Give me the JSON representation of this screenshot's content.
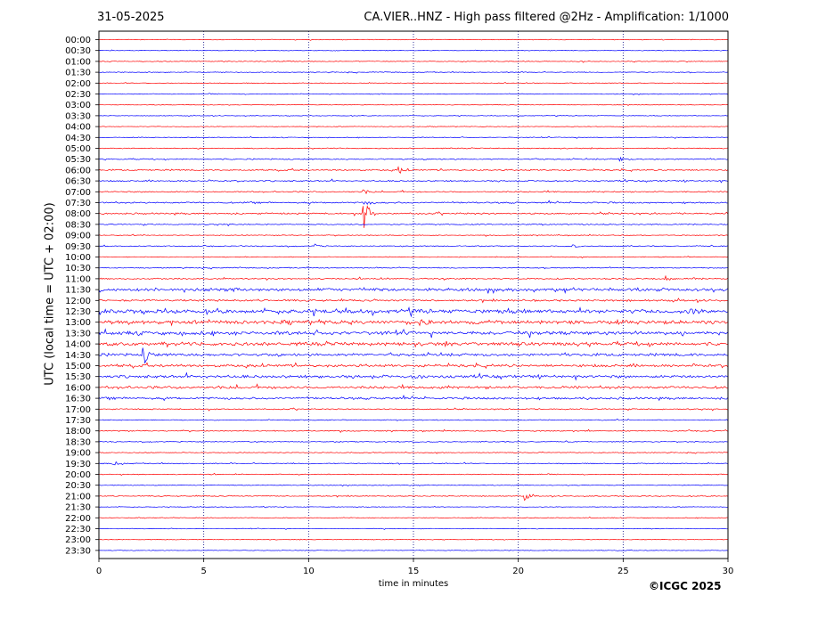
{
  "header": {
    "date": "31-05-2025",
    "title": "CA.VIER..HNZ - High pass filtered @2Hz - Amplification: 1/1000"
  },
  "footer": {
    "copyright": "©ICGC 2025"
  },
  "chart_data": {
    "type": "line",
    "title": "CA.VIER..HNZ - High pass filtered @2Hz - Amplification: 1/1000",
    "xlabel": "time in minutes",
    "ylabel": "UTC (local time = UTC + 02:00)",
    "xlim": [
      0,
      30
    ],
    "xticks": [
      0,
      5,
      10,
      15,
      20,
      25,
      30
    ],
    "grid": "vertical dotted at every 5 minutes",
    "rows": [
      "00:00",
      "00:30",
      "01:00",
      "01:30",
      "02:00",
      "02:30",
      "03:00",
      "03:30",
      "04:00",
      "04:30",
      "05:00",
      "05:30",
      "06:00",
      "06:30",
      "07:00",
      "07:30",
      "08:00",
      "08:30",
      "09:00",
      "09:30",
      "10:00",
      "10:30",
      "11:00",
      "11:30",
      "12:00",
      "12:30",
      "13:00",
      "13:30",
      "14:00",
      "14:30",
      "15:00",
      "15:30",
      "16:00",
      "16:30",
      "17:00",
      "17:30",
      "18:00",
      "18:30",
      "19:00",
      "19:30",
      "20:00",
      "20:30",
      "21:00",
      "21:30",
      "22:00",
      "22:30",
      "23:00",
      "23:30"
    ],
    "trace_colors": [
      "#ff0000",
      "#0000ff"
    ],
    "row_noise_level": [
      0.4,
      0.4,
      0.5,
      0.5,
      0.4,
      0.5,
      0.4,
      0.4,
      0.4,
      0.5,
      0.6,
      0.8,
      0.9,
      0.9,
      0.8,
      1.0,
      1.0,
      0.7,
      0.5,
      0.6,
      0.5,
      0.6,
      0.8,
      2.0,
      1.2,
      2.5,
      2.4,
      2.3,
      2.2,
      1.8,
      1.7,
      1.8,
      1.7,
      1.4,
      0.7,
      0.6,
      0.7,
      0.6,
      0.5,
      0.6,
      0.5,
      0.5,
      0.6,
      0.4,
      0.5,
      0.4,
      0.4,
      0.4
    ],
    "events": [
      {
        "row": "06:00",
        "minute": 14.3,
        "amplitude": 4
      },
      {
        "row": "05:30",
        "minute": 24.8,
        "amplitude": 3
      },
      {
        "row": "07:00",
        "minute": 12.6,
        "amplitude": 3
      },
      {
        "row": "07:30",
        "minute": 12.6,
        "amplitude": 6
      },
      {
        "row": "08:00",
        "minute": 12.6,
        "amplitude": 24
      },
      {
        "row": "09:30",
        "minute": 10.3,
        "amplitude": 2
      },
      {
        "row": "09:30",
        "minute": 22.6,
        "amplitude": 2
      },
      {
        "row": "11:00",
        "minute": 27.0,
        "amplitude": 3
      },
      {
        "row": "12:30",
        "minute": 28.2,
        "amplitude": 4
      },
      {
        "row": "13:00",
        "minute": 15.3,
        "amplitude": 4
      },
      {
        "row": "14:30",
        "minute": 2.1,
        "amplitude": 14
      },
      {
        "row": "15:30",
        "minute": 15.1,
        "amplitude": 4
      },
      {
        "row": "19:30",
        "minute": 0.7,
        "amplitude": 3
      },
      {
        "row": "21:00",
        "minute": 20.3,
        "amplitude": 5
      }
    ]
  }
}
